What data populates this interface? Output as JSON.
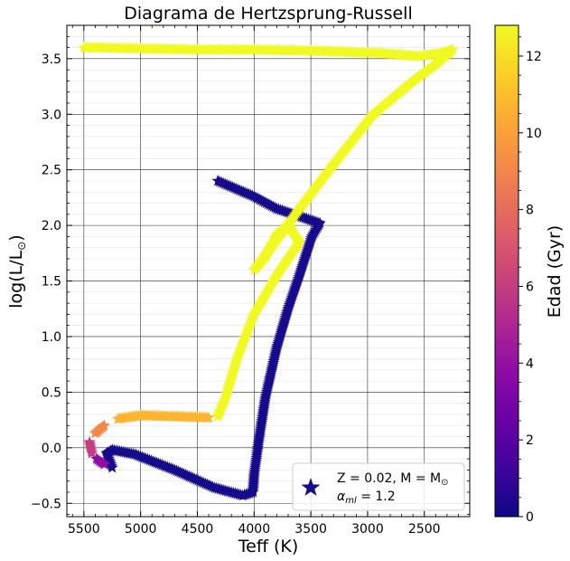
{
  "chart_data": {
    "type": "scatter",
    "title": "Diagrama de Hertzsprung-Russell",
    "xlabel": "Teff (K)",
    "ylabel_main": "log(L/L",
    "ylabel_sub": "⊙",
    "ylabel_end": ")",
    "x_reversed": true,
    "xlim": [
      5650,
      2100
    ],
    "ylim": [
      -0.62,
      3.8
    ],
    "x_ticks": [
      5500,
      5000,
      4500,
      4000,
      3500,
      3000,
      2500
    ],
    "y_ticks": [
      -0.5,
      0.0,
      0.5,
      1.0,
      1.5,
      2.0,
      2.5,
      3.0,
      3.5
    ],
    "grid": true,
    "colorbar": {
      "label": "Edad (Gyr)",
      "range": [
        0,
        12.8
      ],
      "ticks": [
        0,
        2,
        4,
        6,
        8,
        10,
        12
      ],
      "colormap": "plasma"
    },
    "legend": {
      "position": "lower-right",
      "marker": "star",
      "marker_color": "#160b8a",
      "line1": "Z = 0.02, M = M",
      "line1_sub": "⊙",
      "line2_alpha": "α",
      "line2_sub": "ml",
      "line2_rest": " = 1.2"
    },
    "series": [
      {
        "age_gyr": 0.0,
        "color": "#160b8a",
        "points": [
          [
            4320,
            2.4
          ],
          [
            4000,
            2.26
          ],
          [
            3800,
            2.15
          ],
          [
            3420,
            2.02
          ],
          [
            3490,
            1.9
          ],
          [
            3600,
            1.55
          ],
          [
            3700,
            1.25
          ],
          [
            3800,
            0.9
          ],
          [
            3900,
            0.45
          ],
          [
            3960,
            0.05
          ],
          [
            4000,
            -0.25
          ],
          [
            4010,
            -0.4
          ],
          [
            4100,
            -0.43
          ],
          [
            4350,
            -0.36
          ],
          [
            4700,
            -0.2
          ],
          [
            5050,
            -0.06
          ],
          [
            5250,
            -0.02
          ],
          [
            5300,
            -0.05
          ],
          [
            5250,
            -0.18
          ]
        ]
      },
      {
        "age_gyr": 12.7,
        "color": "#f0f921",
        "points": [
          [
            5500,
            3.6
          ],
          [
            5000,
            3.59
          ],
          [
            4500,
            3.58
          ],
          [
            4000,
            3.58
          ],
          [
            3500,
            3.57
          ],
          [
            2900,
            3.55
          ],
          [
            2550,
            3.52
          ],
          [
            2350,
            3.55
          ],
          [
            2250,
            3.58
          ],
          [
            2400,
            3.45
          ],
          [
            2600,
            3.3
          ],
          [
            2950,
            3.0
          ],
          [
            3300,
            2.55
          ],
          [
            3600,
            2.15
          ],
          [
            3850,
            1.8
          ],
          [
            4000,
            1.6
          ],
          [
            3900,
            1.72
          ],
          [
            3800,
            1.92
          ],
          [
            3700,
            2.0
          ],
          [
            3600,
            1.85
          ],
          [
            3800,
            1.55
          ],
          [
            4000,
            1.2
          ],
          [
            4150,
            0.8
          ],
          [
            4250,
            0.45
          ],
          [
            4320,
            0.28
          ]
        ]
      },
      {
        "age_gyr": 11.0,
        "color": "#fdb42f",
        "points": [
          [
            4400,
            0.27
          ],
          [
            4700,
            0.28
          ],
          [
            5000,
            0.29
          ],
          [
            5200,
            0.26
          ]
        ]
      },
      {
        "age_gyr": 9.0,
        "color": "#f48849",
        "points": [
          [
            5320,
            0.2
          ],
          [
            5400,
            0.13
          ]
        ]
      },
      {
        "age_gyr": 5.5,
        "color": "#c33d80",
        "points": [
          [
            5450,
            0.05
          ],
          [
            5430,
            -0.05
          ]
        ]
      },
      {
        "age_gyr": 3.5,
        "color": "#8e0ca4",
        "points": [
          [
            5390,
            -0.1
          ],
          [
            5320,
            -0.15
          ]
        ]
      }
    ]
  }
}
